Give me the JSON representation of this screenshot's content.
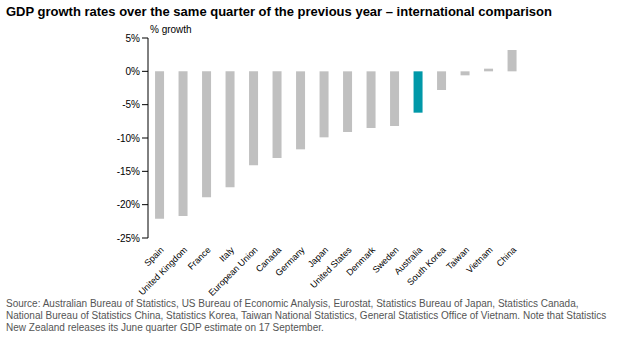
{
  "chart_data": {
    "type": "bar",
    "title": "GDP growth rates over the same quarter of the previous year – international comparison",
    "y_label": "% growth",
    "categories": [
      "Spain",
      "United Kingdom",
      "France",
      "Italy",
      "European Union",
      "Canada",
      "Germany",
      "Japan",
      "United States",
      "Denmark",
      "Sweden",
      "Australia",
      "South Korea",
      "Taiwan",
      "Vietnam",
      "China"
    ],
    "values": [
      -22.1,
      -21.7,
      -18.9,
      -17.4,
      -14.1,
      -13.0,
      -11.7,
      -9.9,
      -9.1,
      -8.5,
      -8.2,
      -6.2,
      -2.8,
      -0.6,
      0.4,
      3.2
    ],
    "colors": [
      "#c0c0c0",
      "#c0c0c0",
      "#c0c0c0",
      "#c0c0c0",
      "#c0c0c0",
      "#c0c0c0",
      "#c0c0c0",
      "#c0c0c0",
      "#c0c0c0",
      "#c0c0c0",
      "#c0c0c0",
      "#0098a8",
      "#c0c0c0",
      "#c0c0c0",
      "#c0c0c0",
      "#c0c0c0"
    ],
    "ylim": [
      -25,
      5
    ],
    "yticks": [
      {
        "value": 5,
        "label": "5%"
      },
      {
        "value": 0,
        "label": "0%"
      },
      {
        "value": -5,
        "label": "-5%"
      },
      {
        "value": -10,
        "label": "-10%"
      },
      {
        "value": -15,
        "label": "-15%"
      },
      {
        "value": -20,
        "label": "-20%"
      },
      {
        "value": -25,
        "label": "-25%"
      }
    ],
    "grid": false,
    "note": "Source: Australian Bureau of Statistics, US Bureau of Economic Analysis, Eurostat, Statistics Bureau of Japan, Statistics Canada, National Bureau of Statistics China, Statistics Korea, Taiwan National Statistics, General Statistics Office of Vietnam.  Note that Statistics New Zealand releases its June quarter GDP estimate on 17 September."
  }
}
